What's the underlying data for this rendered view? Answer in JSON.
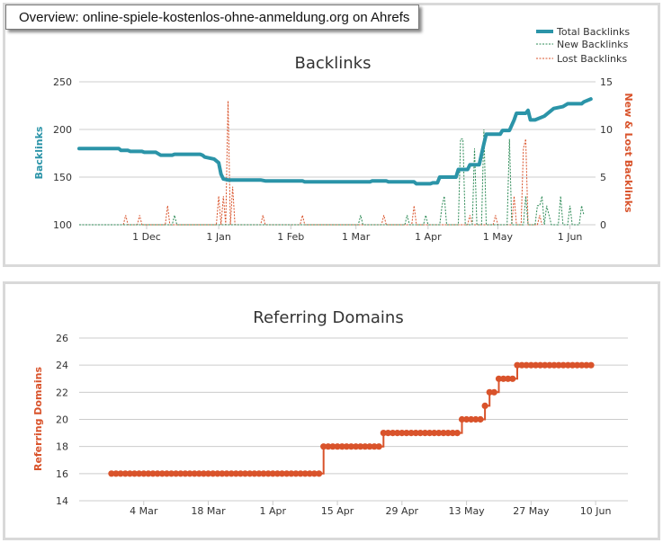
{
  "header": {
    "title": "Overview: online-spiele-kostenlos-ohne-anmeldung.org on Ahrefs"
  },
  "colors": {
    "total": "#2b94a8",
    "new": "#2e8b57",
    "lost": "#d9532b",
    "domains": "#d9532b",
    "grid": "#cccccc"
  },
  "chart_data": [
    {
      "type": "line",
      "title": "Backlinks",
      "ylabel": "Backlinks",
      "y2label": "New & Lost Backlinks",
      "ylim": [
        100,
        250
      ],
      "y2lim": [
        0,
        15
      ],
      "yticks": [
        100,
        150,
        200,
        250
      ],
      "y2ticks": [
        0,
        5,
        10,
        15
      ],
      "xticks": [
        {
          "label": "1 Dec",
          "day": 29
        },
        {
          "label": "1 Jan",
          "day": 60
        },
        {
          "label": "1 Feb",
          "day": 91
        },
        {
          "label": "1 Mar",
          "day": 119
        },
        {
          "label": "1 Apr",
          "day": 150
        },
        {
          "label": "1 May",
          "day": 180
        },
        {
          "label": "1 Jun",
          "day": 211
        }
      ],
      "legend": [
        "Total Backlinks",
        "New Backlinks",
        "Lost Backlinks"
      ],
      "legend_position": "top-right",
      "series": [
        {
          "name": "Total Backlinks",
          "points": [
            [
              0,
              180
            ],
            [
              17,
              180
            ],
            [
              18,
              178
            ],
            [
              21,
              178
            ],
            [
              22,
              177
            ],
            [
              27,
              177
            ],
            [
              28,
              176
            ],
            [
              33,
              176
            ],
            [
              35,
              173
            ],
            [
              40,
              173
            ],
            [
              41,
              174
            ],
            [
              52,
              174
            ],
            [
              53,
              173
            ],
            [
              54,
              171
            ],
            [
              58,
              169
            ],
            [
              60,
              165
            ],
            [
              61,
              153
            ],
            [
              62,
              148
            ],
            [
              64,
              147
            ],
            [
              78,
              147
            ],
            [
              80,
              146
            ],
            [
              96,
              146
            ],
            [
              97,
              145
            ],
            [
              125,
              145
            ],
            [
              126,
              146
            ],
            [
              132,
              146
            ],
            [
              133,
              145
            ],
            [
              144,
              145
            ],
            [
              145,
              143
            ],
            [
              151,
              143
            ],
            [
              152,
              144
            ],
            [
              154,
              144
            ],
            [
              155,
              150
            ],
            [
              162,
              150
            ],
            [
              163,
              158
            ],
            [
              167,
              158
            ],
            [
              168,
              163
            ],
            [
              172,
              163
            ],
            [
              174,
              185
            ],
            [
              175,
              195
            ],
            [
              181,
              195
            ],
            [
              182,
              199
            ],
            [
              185,
              199
            ],
            [
              187,
              210
            ],
            [
              188,
              217
            ],
            [
              192,
              217
            ],
            [
              193,
              220
            ],
            [
              194,
              210
            ],
            [
              196,
              210
            ],
            [
              200,
              214
            ],
            [
              202,
              218
            ],
            [
              204,
              222
            ],
            [
              208,
              224
            ],
            [
              210,
              227
            ],
            [
              216,
              227
            ],
            [
              217,
              229
            ],
            [
              220,
              232
            ]
          ]
        },
        {
          "name": "New Backlinks",
          "points": [
            [
              0,
              0
            ],
            [
              40,
              0
            ],
            [
              41,
              1
            ],
            [
              42,
              0
            ],
            [
              120,
              0
            ],
            [
              121,
              1
            ],
            [
              122,
              0
            ],
            [
              140,
              0
            ],
            [
              141,
              1
            ],
            [
              142,
              0
            ],
            [
              148,
              0
            ],
            [
              149,
              1
            ],
            [
              150,
              0
            ],
            [
              155,
              0
            ],
            [
              156,
              2
            ],
            [
              157,
              3
            ],
            [
              158,
              0
            ],
            [
              163,
              0
            ],
            [
              164,
              9
            ],
            [
              165,
              9
            ],
            [
              166,
              0
            ],
            [
              169,
              0
            ],
            [
              170,
              8
            ],
            [
              171,
              0
            ],
            [
              173,
              0
            ],
            [
              174,
              10
            ],
            [
              175,
              0
            ],
            [
              184,
              0
            ],
            [
              185,
              9
            ],
            [
              186,
              0
            ],
            [
              191,
              0
            ],
            [
              192,
              3
            ],
            [
              193,
              0
            ],
            [
              196,
              0
            ],
            [
              197,
              2
            ],
            [
              198,
              2
            ],
            [
              199,
              3
            ],
            [
              200,
              0
            ],
            [
              201,
              2
            ],
            [
              202,
              1
            ],
            [
              203,
              0
            ],
            [
              206,
              0
            ],
            [
              207,
              3
            ],
            [
              208,
              0
            ],
            [
              210,
              0
            ],
            [
              211,
              2
            ],
            [
              212,
              0
            ],
            [
              215,
              0
            ],
            [
              216,
              2
            ],
            [
              217,
              1
            ]
          ]
        },
        {
          "name": "Lost Backlinks",
          "points": [
            [
              0,
              0
            ],
            [
              19,
              0
            ],
            [
              20,
              1
            ],
            [
              21,
              0
            ],
            [
              25,
              0
            ],
            [
              26,
              1
            ],
            [
              27,
              0
            ],
            [
              37,
              0
            ],
            [
              38,
              2
            ],
            [
              39,
              0
            ],
            [
              59,
              0
            ],
            [
              60,
              3
            ],
            [
              61,
              0
            ],
            [
              62,
              3
            ],
            [
              63,
              0
            ],
            [
              64,
              13
            ],
            [
              65,
              0
            ],
            [
              66,
              4
            ],
            [
              67,
              0
            ],
            [
              78,
              0
            ],
            [
              79,
              1
            ],
            [
              80,
              0
            ],
            [
              95,
              0
            ],
            [
              96,
              1
            ],
            [
              97,
              0
            ],
            [
              130,
              0
            ],
            [
              131,
              1
            ],
            [
              132,
              0
            ],
            [
              143,
              0
            ],
            [
              144,
              2
            ],
            [
              145,
              0
            ],
            [
              167,
              0
            ],
            [
              168,
              1
            ],
            [
              169,
              0
            ],
            [
              178,
              0
            ],
            [
              179,
              1
            ],
            [
              180,
              0
            ],
            [
              186,
              0
            ],
            [
              187,
              3
            ],
            [
              188,
              0
            ],
            [
              190,
              0
            ],
            [
              191,
              8
            ],
            [
              192,
              9
            ],
            [
              193,
              0
            ],
            [
              197,
              0
            ],
            [
              198,
              1
            ],
            [
              199,
              0
            ]
          ]
        }
      ]
    },
    {
      "type": "line",
      "title": "Referring Domains",
      "ylabel": "Referring Domains",
      "ylim": [
        14,
        26
      ],
      "yticks": [
        14,
        16,
        18,
        20,
        22,
        24,
        26
      ],
      "xticks": [
        {
          "label": "4 Mar",
          "day": 61
        },
        {
          "label": "18 Mar",
          "day": 75
        },
        {
          "label": "1 Apr",
          "day": 89
        },
        {
          "label": "15 Apr",
          "day": 103
        },
        {
          "label": "29 Apr",
          "day": 117
        },
        {
          "label": "13 May",
          "day": 131
        },
        {
          "label": "27 May",
          "day": 145
        },
        {
          "label": "10 Jun",
          "day": 159
        }
      ],
      "series": [
        {
          "name": "Referring Domains",
          "steps": [
            [
              54,
              16
            ],
            [
              100,
              18
            ],
            [
              113,
              19
            ],
            [
              130,
              20
            ],
            [
              135,
              21
            ],
            [
              136,
              22
            ],
            [
              138,
              23
            ],
            [
              142,
              24
            ]
          ],
          "x_end": 158
        }
      ]
    }
  ]
}
